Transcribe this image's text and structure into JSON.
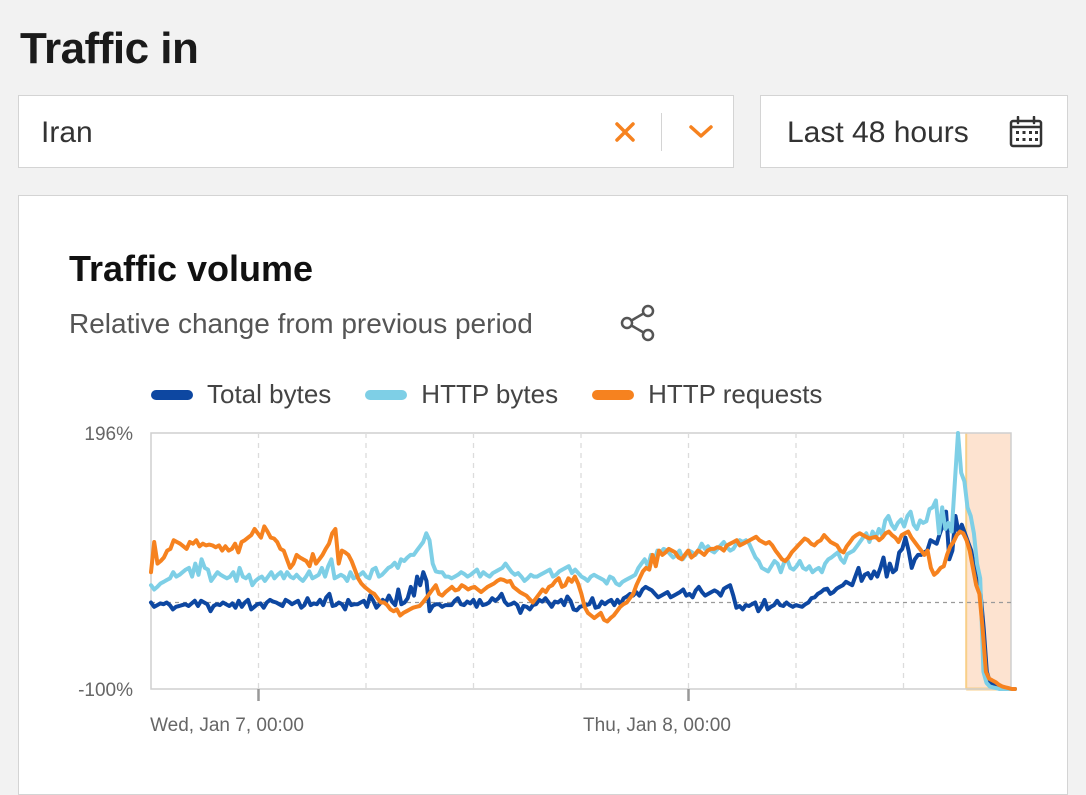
{
  "header": {
    "title": "Traffic in"
  },
  "location_select": {
    "value": "Iran",
    "clear_icon": "close-icon",
    "dropdown_icon": "chevron-down-icon"
  },
  "date_range": {
    "value": "Last 48 hours",
    "icon": "calendar-icon"
  },
  "colors": {
    "accent": "#f6821f",
    "total_bytes": "#0d47a1",
    "http_bytes": "#7ecfe6",
    "http_requests": "#f6821f",
    "outage_band": "#fde3d0"
  },
  "card": {
    "title": "Traffic volume",
    "subtitle": "Relative change from previous period",
    "share_icon": "share-icon"
  },
  "chart_data": {
    "type": "line",
    "title": "Traffic volume",
    "subtitle": "Relative change from previous period",
    "x_start": "Jan 6, 18:00",
    "x_end": "Jan 8, 18:00",
    "x_tick_labels": [
      "Wed, Jan 7, 00:00",
      "Thu, Jan 8, 00:00"
    ],
    "ylim": [
      -100,
      196
    ],
    "y_tick_labels": [
      "196%",
      "-100%"
    ],
    "reference_line": 0,
    "grid": "vertical dashed",
    "legend": "top-left",
    "outage_period": {
      "start": "Jan 8, 15:30",
      "end": "Jan 8, 18:00"
    },
    "series": [
      {
        "name": "Total bytes",
        "color": "#0d47a1",
        "values": [
          0,
          -5,
          -3,
          -1,
          -2,
          0,
          -3,
          -8,
          -5,
          -4,
          -3,
          -2,
          -4,
          -1,
          2,
          -4,
          2,
          0,
          -2,
          -10,
          -4,
          -2,
          -3,
          0,
          -2,
          -4,
          -1,
          -6,
          2,
          -5,
          0,
          3,
          -8,
          -5,
          -2,
          -1,
          -6,
          0,
          3,
          1,
          0,
          -2,
          -4,
          3,
          1,
          -2,
          0,
          2,
          -6,
          -3,
          5,
          -3,
          -1,
          -2,
          3,
          -3,
          6,
          10,
          -4,
          -3,
          0,
          -2,
          -8,
          3,
          -3,
          -2,
          -2,
          0,
          2,
          -5,
          8,
          2,
          -6,
          -2,
          3,
          0,
          8,
          1,
          -3,
          15,
          -2,
          0,
          5,
          18,
          8,
          30,
          20,
          35,
          25,
          -10,
          -4,
          -2,
          -2,
          -5,
          -3,
          -3,
          -3,
          2,
          5,
          -2,
          -3,
          1,
          -1,
          3,
          -5,
          3,
          -3,
          -2,
          0,
          5,
          2,
          5,
          10,
          1,
          -3,
          -2,
          0,
          -3,
          -12,
          -4,
          -5,
          -8,
          -3,
          -2,
          3,
          1,
          5,
          0,
          -5,
          1,
          0,
          3,
          -3,
          7,
          2,
          -8,
          -9,
          -5,
          -4,
          -3,
          -2,
          5,
          -6,
          -5,
          1,
          -2,
          1,
          3,
          -3,
          3,
          -2,
          5,
          7,
          10,
          8,
          12,
          8,
          15,
          18,
          16,
          14,
          10,
          6,
          8,
          10,
          12,
          6,
          8,
          10,
          12,
          15,
          8,
          10,
          6,
          14,
          18,
          12,
          8,
          10,
          12,
          14,
          12,
          8,
          16,
          18,
          20,
          8,
          -6,
          -4,
          -8,
          -3,
          -4,
          -2,
          0,
          -10,
          -5,
          3,
          -8,
          -5,
          -3,
          2,
          -3,
          -4,
          0,
          -3,
          -5,
          -3,
          -4,
          -5,
          -2,
          0,
          5,
          6,
          10,
          12,
          15,
          16,
          10,
          12,
          16,
          18,
          20,
          24,
          22,
          20,
          30,
          40,
          25,
          32,
          34,
          28,
          36,
          30,
          40,
          52,
          30,
          45,
          35,
          38,
          58,
          62,
          75,
          60,
          40,
          50,
          55,
          55,
          58,
          60,
          72,
          70,
          68,
          80,
          90,
          105,
          50,
          60,
          100,
          80,
          90,
          80,
          70,
          60,
          40,
          20,
          10,
          -30,
          -80,
          -92,
          -95,
          -97,
          -98,
          -99,
          -99,
          -100,
          -100,
          -100
        ]
      },
      {
        "name": "HTTP bytes",
        "color": "#7ecfe6",
        "values": [
          20,
          15,
          18,
          22,
          24,
          26,
          28,
          35,
          30,
          32,
          35,
          38,
          40,
          30,
          45,
          32,
          50,
          40,
          38,
          25,
          30,
          35,
          32,
          30,
          28,
          30,
          35,
          25,
          40,
          30,
          28,
          32,
          20,
          25,
          28,
          30,
          25,
          30,
          35,
          28,
          32,
          35,
          28,
          35,
          30,
          28,
          32,
          28,
          25,
          30,
          36,
          28,
          30,
          32,
          40,
          30,
          42,
          50,
          28,
          30,
          32,
          30,
          25,
          35,
          28,
          30,
          32,
          35,
          30,
          28,
          38,
          40,
          30,
          32,
          36,
          40,
          42,
          46,
          40,
          50,
          48,
          52,
          55,
          55,
          60,
          65,
          70,
          80,
          72,
          45,
          36,
          35,
          35,
          30,
          30,
          28,
          30,
          32,
          35,
          33,
          30,
          32,
          35,
          38,
          30,
          35,
          32,
          30,
          34,
          36,
          38,
          40,
          45,
          40,
          35,
          32,
          34,
          30,
          25,
          28,
          32,
          30,
          30,
          32,
          34,
          36,
          38,
          30,
          32,
          36,
          38,
          40,
          42,
          34,
          38,
          34,
          30,
          28,
          25,
          30,
          32,
          30,
          28,
          26,
          22,
          30,
          28,
          22,
          20,
          24,
          26,
          28,
          30,
          32,
          40,
          45,
          50,
          42,
          55,
          48,
          60,
          58,
          62,
          60,
          56,
          52,
          55,
          60,
          50,
          55,
          60,
          58,
          55,
          60,
          68,
          62,
          65,
          60,
          58,
          62,
          66,
          70,
          64,
          60,
          62,
          68,
          72,
          70,
          72,
          68,
          60,
          52,
          48,
          40,
          38,
          36,
          42,
          48,
          45,
          35,
          46,
          50,
          40,
          38,
          42,
          48,
          40,
          38,
          42,
          35,
          38,
          40,
          35,
          45,
          50,
          52,
          55,
          58,
          50,
          46,
          56,
          58,
          60,
          65,
          70,
          75,
          80,
          70,
          82,
          75,
          85,
          78,
          95,
          100,
          90,
          85,
          92,
          96,
          88,
          100,
          105,
          90,
          85,
          95,
          92,
          94,
          108,
          110,
          118,
          80,
          110,
          85,
          92,
          82,
          140,
          196,
          150,
          140,
          110,
          100,
          80,
          45,
          28,
          -80,
          -93,
          -97,
          -98,
          -99,
          -100,
          -100,
          -100,
          -100,
          -100,
          -100
        ]
      },
      {
        "name": "HTTP requests",
        "color": "#f6821f",
        "values": [
          35,
          70,
          45,
          48,
          52,
          60,
          62,
          72,
          70,
          68,
          65,
          62,
          70,
          68,
          72,
          65,
          68,
          66,
          67,
          66,
          64,
          66,
          60,
          65,
          60,
          62,
          68,
          58,
          70,
          72,
          75,
          78,
          85,
          80,
          75,
          88,
          82,
          75,
          74,
          70,
          62,
          60,
          50,
          40,
          45,
          55,
          52,
          50,
          48,
          42,
          56,
          45,
          50,
          55,
          62,
          68,
          80,
          85,
          45,
          60,
          58,
          55,
          48,
          38,
          28,
          22,
          18,
          15,
          12,
          10,
          5,
          0,
          0,
          -3,
          -8,
          -10,
          -8,
          -15,
          -12,
          -10,
          -8,
          -6,
          -5,
          -4,
          0,
          5,
          10,
          15,
          20,
          10,
          8,
          12,
          15,
          18,
          14,
          15,
          20,
          18,
          15,
          17,
          18,
          15,
          12,
          15,
          18,
          20,
          22,
          25,
          27,
          26,
          24,
          25,
          18,
          15,
          12,
          10,
          8,
          4,
          0,
          5,
          10,
          15,
          12,
          18,
          20,
          25,
          28,
          18,
          20,
          28,
          24,
          30,
          22,
          10,
          -5,
          -12,
          -15,
          -18,
          -15,
          -12,
          -20,
          -22,
          -18,
          -15,
          -10,
          -5,
          -2,
          0,
          5,
          10,
          20,
          28,
          36,
          40,
          38,
          55,
          42,
          60,
          55,
          58,
          62,
          60,
          58,
          52,
          50,
          55,
          60,
          52,
          55,
          60,
          58,
          55,
          60,
          62,
          62,
          64,
          63,
          60,
          66,
          68,
          70,
          72,
          66,
          68,
          70,
          72,
          74,
          76,
          72,
          70,
          68,
          70,
          66,
          60,
          55,
          50,
          48,
          52,
          58,
          62,
          66,
          70,
          74,
          72,
          68,
          66,
          70,
          72,
          78,
          74,
          70,
          68,
          66,
          60,
          58,
          65,
          70,
          75,
          78,
          80,
          78,
          76,
          74,
          75,
          76,
          72,
          75,
          80,
          82,
          78,
          75,
          70,
          78,
          80,
          82,
          75,
          70,
          65,
          60,
          55,
          60,
          40,
          32,
          35,
          40,
          42,
          55,
          65,
          70,
          78,
          82,
          80,
          72,
          60,
          40,
          20,
          10,
          -30,
          -80,
          -88,
          -90,
          -92,
          -95,
          -97,
          -98,
          -99,
          -100,
          -100
        ]
      }
    ]
  }
}
